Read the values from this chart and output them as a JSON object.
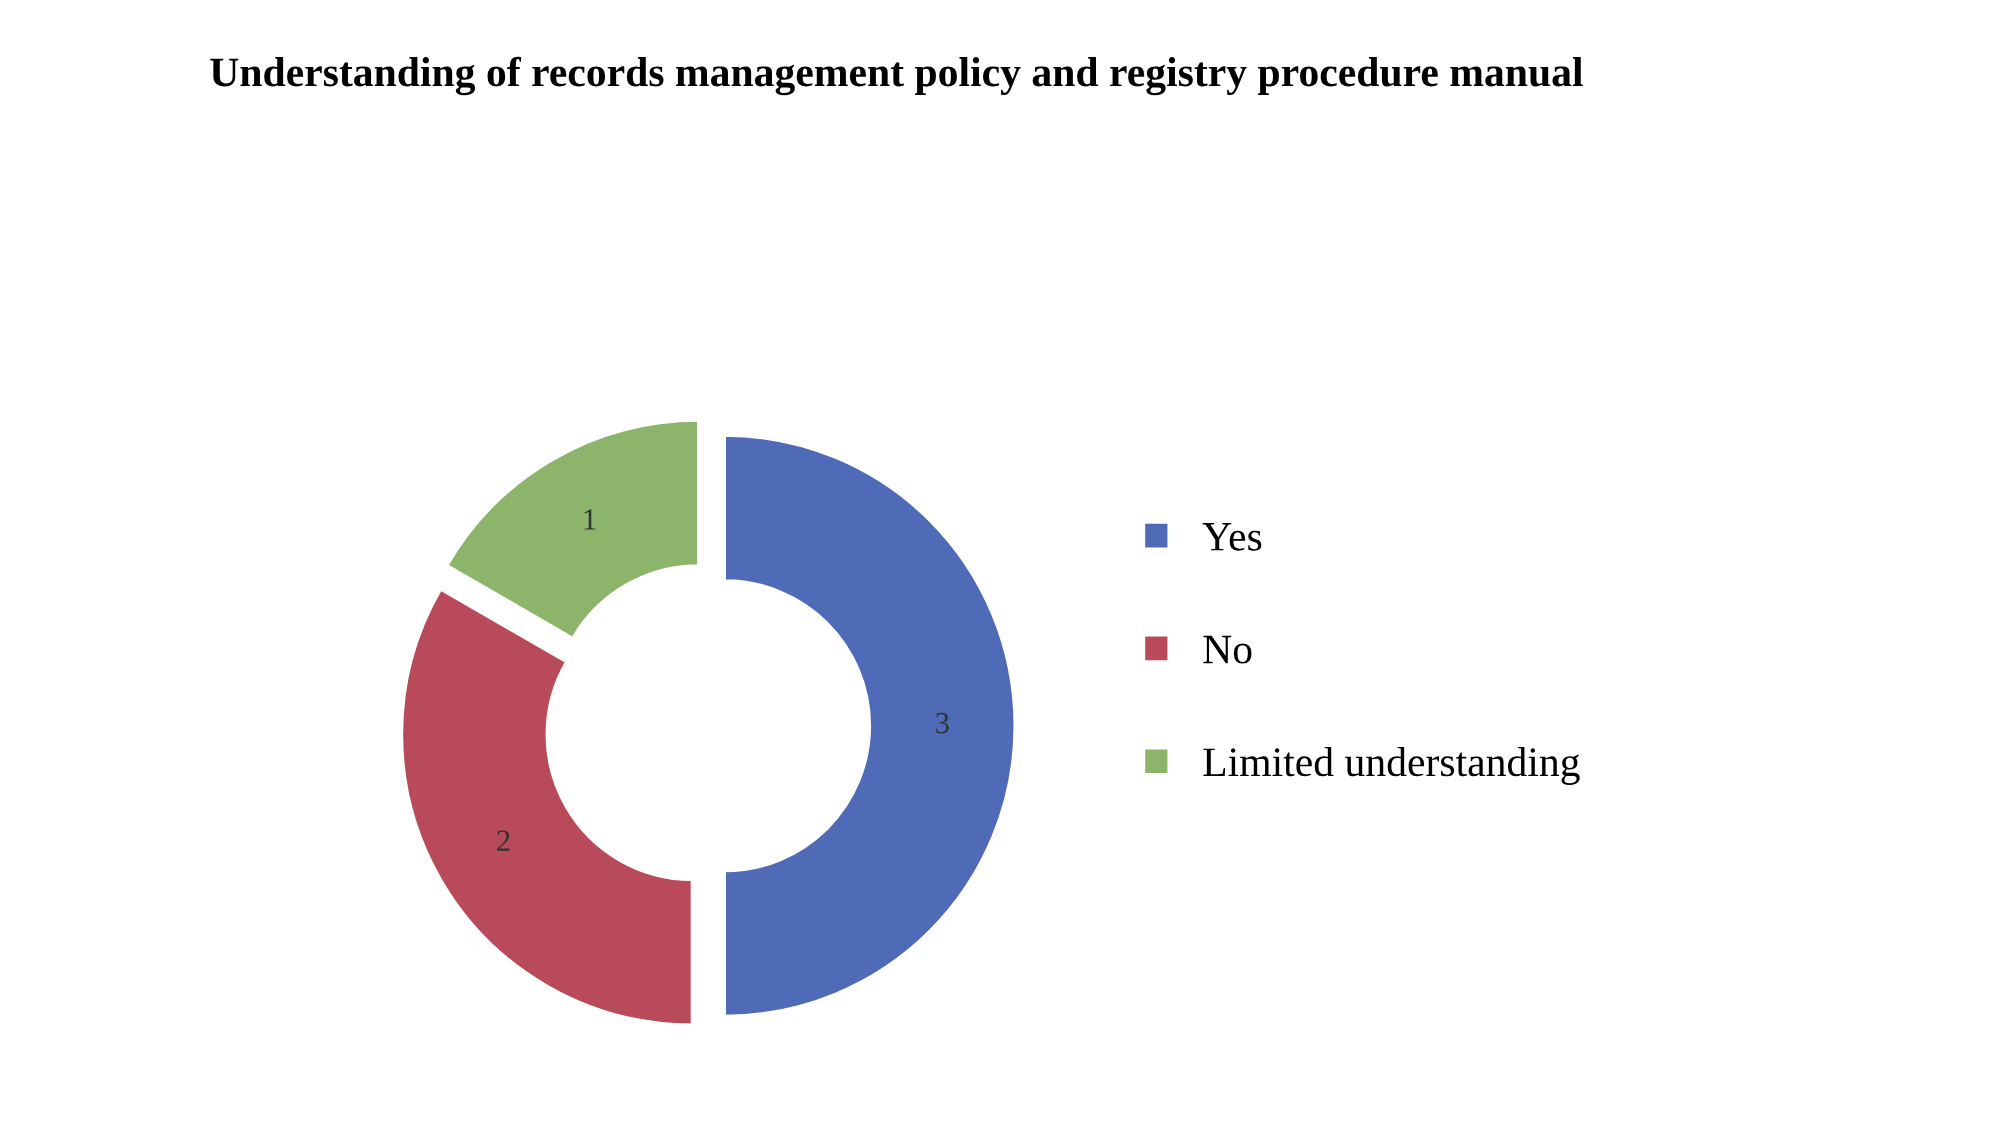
{
  "chart_data": {
    "type": "donut",
    "title": "Understanding of records management policy and registry procedure manual",
    "categories": [
      "Yes",
      "No",
      "Limited understanding"
    ],
    "values": [
      3,
      2,
      1
    ],
    "colors": [
      "#4f6bb8",
      "#b84a5a",
      "#8cb46a"
    ],
    "data_labels": true,
    "legend": "right"
  }
}
